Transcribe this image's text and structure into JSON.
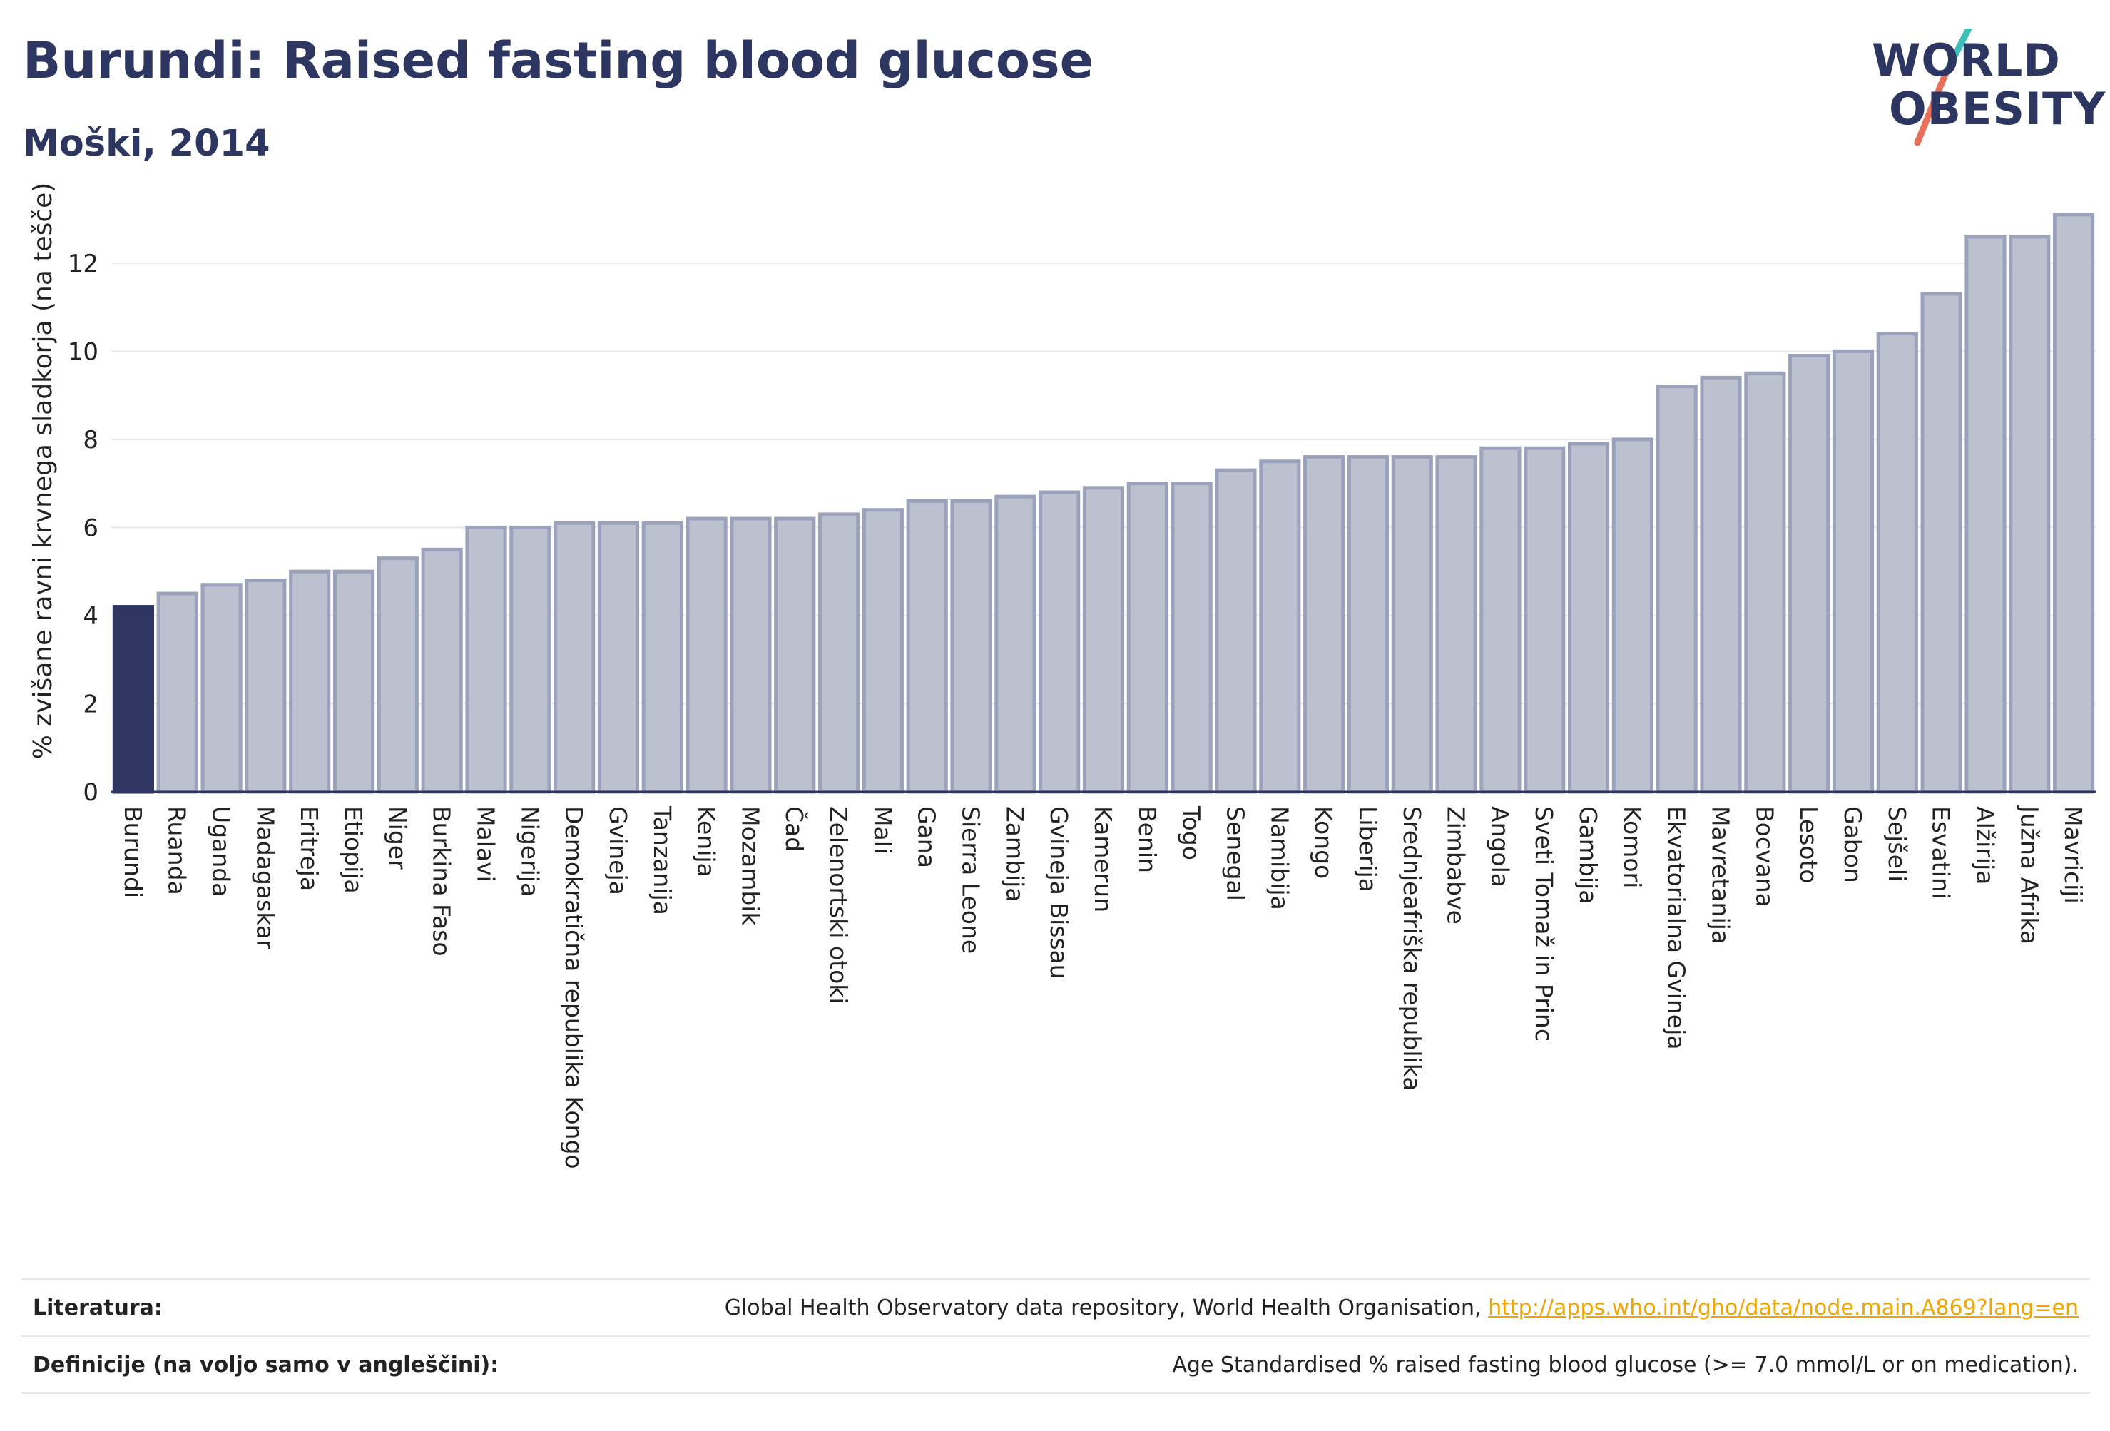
{
  "header": {
    "title": "Burundi: Raised fasting blood glucose",
    "subtitle": "Moški, 2014"
  },
  "logo": {
    "line1": "WORLD",
    "line2": "OBESITY",
    "colors": {
      "text": "#2c3660",
      "slash_top": "#3bbfb8",
      "slash_bottom": "#e8705a"
    }
  },
  "colors": {
    "highlight_bar": "#2c3660",
    "bar_fill": "#bcc1d0",
    "bar_stroke": "#9ba2bb",
    "grid": "#e5e7ee",
    "axis": "#2c3660"
  },
  "chart_data": {
    "type": "bar",
    "title": "Burundi: Raised fasting blood glucose",
    "subtitle": "Moški, 2014",
    "xlabel": "",
    "ylabel": "% zvišane ravni krvnega sladkorja (na tešče)",
    "ylim": [
      0,
      13.6
    ],
    "yticks": [
      0,
      2,
      4,
      6,
      8,
      10,
      12
    ],
    "grid": true,
    "highlight": "Burundi",
    "categories": [
      "Burundi",
      "Ruanda",
      "Uganda",
      "Madagaskar",
      "Eritreja",
      "Etiopija",
      "Niger",
      "Burkina Faso",
      "Malavi",
      "Nigerija",
      "Demokratična republika Kongo",
      "Gvineja",
      "Tanzanija",
      "Kenija",
      "Mozambik",
      "Čad",
      "Zelenortski otoki",
      "Mali",
      "Gana",
      "Sierra Leone",
      "Zambija",
      "Gvineja Bissau",
      "Kamerun",
      "Benin",
      "Togo",
      "Senegal",
      "Namibija",
      "Kongo",
      "Liberija",
      "Srednjeafriška republika",
      "Zimbabve",
      "Angola",
      "Sveti Tomaž in Princ",
      "Gambija",
      "Komori",
      "Ekvatorialna Gvineja",
      "Mavretanija",
      "Bocvana",
      "Lesoto",
      "Gabon",
      "Sejšeli",
      "Esvatini",
      "Alžirija",
      "Južna Afrika",
      "Mavriciji"
    ],
    "values": [
      4.2,
      4.5,
      4.7,
      4.8,
      5.0,
      5.0,
      5.3,
      5.5,
      6.0,
      6.0,
      6.1,
      6.1,
      6.1,
      6.2,
      6.2,
      6.2,
      6.3,
      6.4,
      6.6,
      6.6,
      6.7,
      6.8,
      6.9,
      7.0,
      7.0,
      7.3,
      7.5,
      7.6,
      7.6,
      7.6,
      7.6,
      7.8,
      7.8,
      7.9,
      8.0,
      9.2,
      9.4,
      9.5,
      9.9,
      10.0,
      10.4,
      11.3,
      12.6,
      12.6,
      13.1
    ]
  },
  "footer": {
    "references_label": "Literatura:",
    "references_text": "Global Health Observatory data repository, World Health Organisation, ",
    "references_link": "http://apps.who.int/gho/data/node.main.A869?lang=en",
    "definitions_label": "Definicije (na voljo samo v angleščini):",
    "definitions_text": "Age Standardised % raised fasting blood glucose (>= 7.0 mmol/L or on medication)."
  }
}
